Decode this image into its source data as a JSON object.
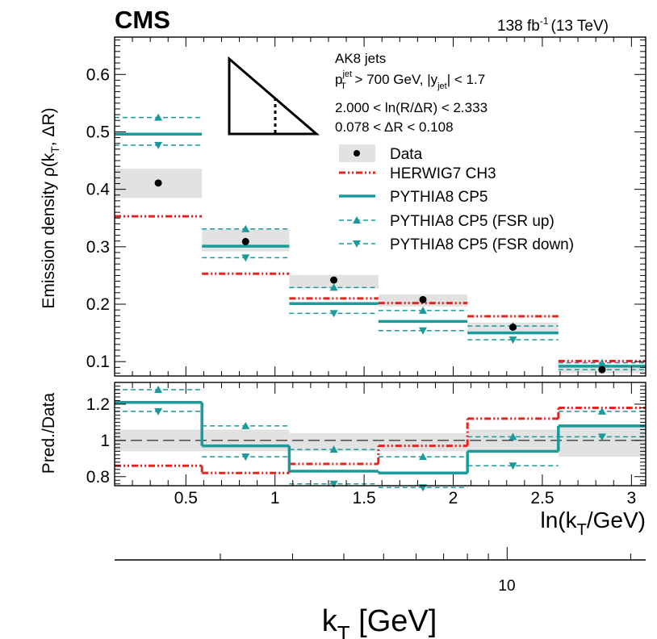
{
  "header": {
    "experiment": "CMS",
    "luminosity": "138 fb",
    "lumi_exponent": "-1",
    "energy": "(13 TeV)"
  },
  "legend": {
    "jet_line": "AK8 jets",
    "cut_pt": "p",
    "cut_pt_sup": "jet",
    "cut_pt_sub": "T",
    "cut_pt_rest": " > 700 GeV, |y",
    "cut_y_sub": "jet",
    "cut_y_rest": "| < 1.7",
    "bin_ln": "2.000 < ln(R/ΔR) < 2.333",
    "bin_dr": "0.078 < ΔR < 0.108",
    "entries": [
      "Data",
      "HERWIG7 CH3",
      "PYTHIA8 CP5",
      "PYTHIA8 CP5 (FSR up)",
      "PYTHIA8 CP5 (FSR down)"
    ]
  },
  "colors": {
    "data": "#000000",
    "band": "#e2e2e2",
    "herwig": "#e8231e",
    "pythia": "#1b9a9b"
  },
  "chart_data": [
    {
      "type": "histogram",
      "panel": "main",
      "ylabel": "Emission density ρ(k_T, ΔR)",
      "ylim": [
        0.075,
        0.665
      ],
      "yticks": [
        "0.1",
        "0.2",
        "0.3",
        "0.4",
        "0.5",
        "0.6"
      ],
      "xlim": [
        0.1,
        3.08
      ],
      "bin_edges": [
        0.1,
        0.59,
        1.08,
        1.58,
        2.08,
        2.59,
        3.08
      ],
      "data": {
        "values": [
          0.411,
          0.309,
          0.242,
          0.208,
          0.16,
          0.086
        ],
        "band_low": [
          0.385,
          0.292,
          0.228,
          0.196,
          0.151,
          0.08
        ],
        "band_high": [
          0.436,
          0.33,
          0.251,
          0.217,
          0.168,
          0.092
        ]
      },
      "series": [
        {
          "name": "HERWIG7 CH3",
          "values": [
            0.353,
            0.253,
            0.21,
            0.202,
            0.179,
            0.101
          ]
        },
        {
          "name": "PYTHIA8 CP5",
          "values": [
            0.496,
            0.301,
            0.201,
            0.17,
            0.15,
            0.092
          ]
        },
        {
          "name": "PYTHIA8 CP5 (FSR up)",
          "values": [
            0.525,
            0.331,
            0.229,
            0.189,
            0.162,
            0.098
          ]
        },
        {
          "name": "PYTHIA8 CP5 (FSR down)",
          "values": [
            0.477,
            0.281,
            0.184,
            0.154,
            0.138,
            0.086
          ]
        }
      ]
    },
    {
      "type": "histogram",
      "panel": "ratio",
      "ylabel": "Pred./Data",
      "ylim": [
        0.75,
        1.32
      ],
      "yticks": [
        "0.8",
        "1",
        "1.2"
      ],
      "xlabel": "ln(k_T/GeV)",
      "xticks": [
        "0.5",
        "1",
        "1.5",
        "2",
        "2.5",
        "3"
      ],
      "bin_edges": [
        0.1,
        0.59,
        1.08,
        1.58,
        2.08,
        2.59,
        3.08
      ],
      "band_low": [
        0.94,
        0.94,
        0.94,
        0.94,
        0.94,
        0.91
      ],
      "band_high": [
        1.06,
        1.06,
        1.04,
        1.04,
        1.06,
        1.09
      ],
      "series": [
        {
          "name": "HERWIG7 CH3",
          "values": [
            0.86,
            0.82,
            0.87,
            0.97,
            1.12,
            1.18
          ]
        },
        {
          "name": "PYTHIA8 CP5",
          "values": [
            1.21,
            0.97,
            0.83,
            0.82,
            0.94,
            1.08
          ]
        },
        {
          "name": "PYTHIA8 CP5 (FSR up)",
          "values": [
            1.28,
            1.08,
            0.95,
            0.91,
            1.02,
            1.16
          ]
        },
        {
          "name": "PYTHIA8 CP5 (FSR down)",
          "values": [
            1.16,
            0.91,
            0.76,
            0.74,
            0.86,
            1.02
          ]
        }
      ]
    },
    {
      "type": "axis",
      "panel": "secondary-axis",
      "xlabel": "k_T [GeV]",
      "scale": "log",
      "tick_labels": [
        "10"
      ]
    }
  ],
  "axis_text": {
    "ylabel_main": "Emission density ρ(k",
    "ylabel_main_sub": "T",
    "ylabel_main_rest": ", ΔR)",
    "ylabel_ratio": "Pred./Data",
    "xlabel_ln": "ln(k",
    "xlabel_ln_sub": "T",
    "xlabel_ln_rest": "/GeV)",
    "xlabel_kt": "k",
    "xlabel_kt_sub": "T",
    "xlabel_kt_rest": " [GeV]",
    "kt_tick": "10"
  }
}
